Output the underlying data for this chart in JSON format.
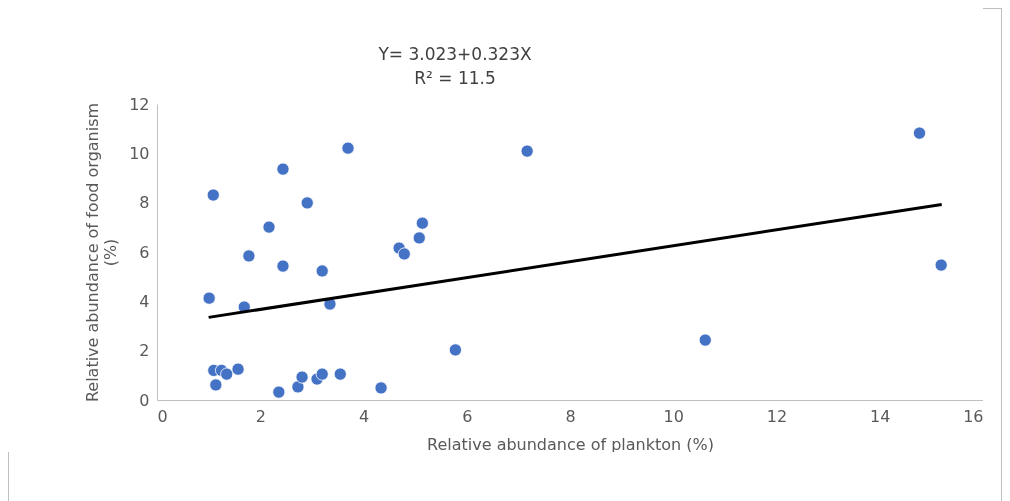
{
  "chart_data": {
    "type": "scatter",
    "xlabel": "Relative abundance of plankton (%)",
    "ylabel": "Relative abundance of food organism (%)",
    "annotations": [
      "Y= 3.023+0.323X",
      "R² = 11.5"
    ],
    "xlim": [
      0,
      16
    ],
    "xticks": [
      0,
      2,
      4,
      6,
      8,
      10,
      12,
      14,
      16
    ],
    "ylim": [
      0,
      12
    ],
    "yticks": [
      0,
      2,
      4,
      6,
      8,
      10,
      12
    ],
    "grid": false,
    "series": [
      {
        "marker": "circle",
        "color": "#4472c4",
        "x": [
          1.01,
          1.09,
          1.1,
          1.14,
          1.25,
          1.35,
          1.57,
          1.69,
          1.78,
          2.17,
          2.36,
          2.44,
          2.44,
          2.73,
          2.81,
          2.91,
          3.1,
          3.2,
          3.2,
          3.35,
          3.55,
          3.7,
          4.34,
          4.69,
          4.79,
          5.08,
          5.14,
          5.78,
          7.17,
          10.62,
          14.77,
          15.19
        ],
        "values": [
          4.13,
          8.31,
          1.2,
          0.61,
          1.2,
          1.05,
          1.25,
          3.77,
          5.84,
          7.01,
          0.32,
          9.36,
          5.43,
          0.53,
          0.93,
          7.99,
          0.85,
          1.05,
          5.23,
          3.89,
          1.05,
          10.21,
          0.49,
          6.16,
          5.92,
          6.57,
          7.17,
          2.03,
          10.09,
          2.43,
          10.82,
          5.47
        ]
      },
      {
        "type": "line",
        "color": "#000000",
        "x": [
          1.0,
          15.2
        ],
        "values": [
          3.35,
          7.93
        ]
      }
    ]
  }
}
